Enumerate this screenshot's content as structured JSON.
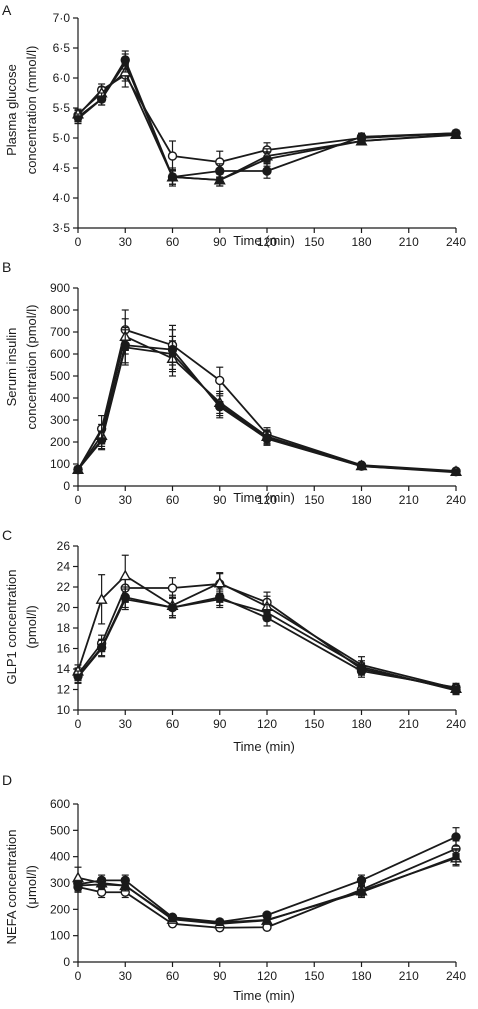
{
  "chart_data": [
    {
      "panel": "A",
      "type": "line",
      "xlabel": "Time (min)",
      "ylabel": [
        "Plasma glucose",
        "concentration (mmol/l)"
      ],
      "xlim": [
        0,
        240
      ],
      "ylim": [
        3.5,
        7.0
      ],
      "xticks": [
        0,
        30,
        60,
        90,
        120,
        150,
        180,
        210,
        240
      ],
      "xtick_labels": [
        "0",
        "30",
        "60",
        "90",
        "120",
        "150",
        "180",
        "210",
        "240"
      ],
      "yticks": [
        3.5,
        4.0,
        4.5,
        5.0,
        5.5,
        6.0,
        6.5,
        7.0
      ],
      "ytick_labels": [
        "3·5",
        "4·0",
        "4·5",
        "5·0",
        "5·5",
        "6·0",
        "6·5",
        "7·0"
      ],
      "x": [
        0,
        15,
        30,
        60,
        90,
        120,
        180,
        240
      ],
      "series": [
        {
          "marker": "open-circle",
          "values": [
            5.38,
            5.8,
            6.05,
            4.7,
            4.6,
            4.8,
            5.0,
            5.08
          ],
          "errors": [
            0.08,
            0.1,
            0.2,
            0.25,
            0.18,
            0.12,
            0.06,
            0.05
          ]
        },
        {
          "marker": "filled-circle",
          "values": [
            5.35,
            5.65,
            6.3,
            4.35,
            4.45,
            4.45,
            5.02,
            5.08
          ],
          "errors": [
            0.08,
            0.1,
            0.15,
            0.15,
            0.12,
            0.12,
            0.06,
            0.05
          ]
        },
        {
          "marker": "open-triangle",
          "values": [
            5.4,
            5.75,
            6.1,
            4.35,
            4.3,
            4.7,
            4.95,
            5.06
          ],
          "errors": [
            0.08,
            0.1,
            0.15,
            0.12,
            0.1,
            0.12,
            0.06,
            0.05
          ]
        },
        {
          "marker": "filled-square",
          "values": [
            5.32,
            5.65,
            6.25,
            4.35,
            4.3,
            4.65,
            4.95,
            5.05
          ],
          "errors": [
            0.08,
            0.1,
            0.15,
            0.12,
            0.1,
            0.12,
            0.06,
            0.05
          ]
        }
      ]
    },
    {
      "panel": "B",
      "type": "line",
      "xlabel": "Time (min)",
      "ylabel": [
        "Serum insulin",
        "concentration (pmol/l)"
      ],
      "xlim": [
        0,
        240
      ],
      "ylim": [
        0,
        900
      ],
      "xticks": [
        0,
        30,
        60,
        90,
        120,
        150,
        180,
        210,
        240
      ],
      "xtick_labels": [
        "0",
        "30",
        "60",
        "90",
        "120",
        "150",
        "180",
        "210",
        "240"
      ],
      "yticks": [
        0,
        100,
        200,
        300,
        400,
        500,
        600,
        700,
        800,
        900
      ],
      "ytick_labels": [
        "0",
        "100",
        "200",
        "300",
        "400",
        "500",
        "600",
        "700",
        "800",
        "900"
      ],
      "x": [
        0,
        15,
        30,
        60,
        90,
        120,
        180,
        240
      ],
      "series": [
        {
          "marker": "open-circle",
          "values": [
            75,
            260,
            710,
            640,
            480,
            235,
            95,
            68
          ],
          "errors": [
            15,
            60,
            90,
            90,
            60,
            30,
            10,
            8
          ]
        },
        {
          "marker": "filled-circle",
          "values": [
            75,
            210,
            640,
            620,
            360,
            215,
            90,
            65
          ],
          "errors": [
            15,
            40,
            80,
            90,
            50,
            30,
            10,
            8
          ]
        },
        {
          "marker": "open-triangle",
          "values": [
            75,
            230,
            680,
            580,
            380,
            225,
            92,
            66
          ],
          "errors": [
            15,
            50,
            80,
            80,
            50,
            30,
            10,
            8
          ]
        },
        {
          "marker": "filled-square",
          "values": [
            75,
            205,
            630,
            600,
            370,
            220,
            90,
            62
          ],
          "errors": [
            15,
            40,
            80,
            80,
            50,
            30,
            10,
            8
          ]
        }
      ]
    },
    {
      "panel": "C",
      "type": "line",
      "xlabel": "Time (min)",
      "ylabel": [
        "GLP1 concentration",
        "(pmol/l)"
      ],
      "xlim": [
        0,
        240
      ],
      "ylim": [
        10,
        26
      ],
      "xticks": [
        0,
        30,
        60,
        90,
        120,
        150,
        180,
        210,
        240
      ],
      "xtick_labels": [
        "0",
        "30",
        "60",
        "90",
        "120",
        "150",
        "180",
        "210",
        "240"
      ],
      "yticks": [
        10,
        12,
        14,
        16,
        18,
        20,
        22,
        24,
        26
      ],
      "ytick_labels": [
        "10",
        "12",
        "14",
        "16",
        "18",
        "20",
        "22",
        "24",
        "26"
      ],
      "x": [
        0,
        15,
        30,
        60,
        90,
        120,
        180,
        240
      ],
      "series": [
        {
          "marker": "open-circle",
          "values": [
            13.5,
            16.5,
            21.9,
            21.9,
            22.3,
            20.5,
            14.0,
            12.0
          ],
          "errors": [
            0.6,
            0.8,
            1.0,
            1.0,
            1.0,
            1.0,
            0.6,
            0.4
          ]
        },
        {
          "marker": "filled-circle",
          "values": [
            13.3,
            16.1,
            21.0,
            20.0,
            21.0,
            19.0,
            13.8,
            12.2
          ],
          "errors": [
            0.6,
            0.8,
            1.0,
            1.0,
            0.8,
            0.8,
            0.6,
            0.4
          ]
        },
        {
          "marker": "open-triangle",
          "values": [
            13.8,
            20.8,
            23.1,
            20.2,
            22.4,
            20.1,
            14.4,
            12.1
          ],
          "errors": [
            0.6,
            2.4,
            2.0,
            1.0,
            1.0,
            1.0,
            0.8,
            0.4
          ]
        },
        {
          "marker": "filled-square",
          "values": [
            13.2,
            16.0,
            20.8,
            20.0,
            20.8,
            19.5,
            14.2,
            11.9
          ],
          "errors": [
            0.6,
            0.8,
            1.0,
            1.0,
            0.8,
            0.8,
            0.6,
            0.4
          ]
        }
      ]
    },
    {
      "panel": "D",
      "type": "line",
      "xlabel": "Time (min)",
      "ylabel": [
        "NEFA concentration",
        "(μmol/l)"
      ],
      "xlim": [
        0,
        240
      ],
      "ylim": [
        0,
        600
      ],
      "xticks": [
        0,
        30,
        60,
        90,
        120,
        150,
        180,
        210,
        240
      ],
      "xtick_labels": [
        "0",
        "30",
        "60",
        "90",
        "120",
        "150",
        "180",
        "210",
        "240"
      ],
      "yticks": [
        0,
        100,
        200,
        300,
        400,
        500,
        600
      ],
      "ytick_labels": [
        "0",
        "100",
        "200",
        "300",
        "400",
        "500",
        "600"
      ],
      "x": [
        0,
        15,
        30,
        60,
        90,
        120,
        180,
        240
      ],
      "series": [
        {
          "marker": "open-circle",
          "values": [
            285,
            265,
            265,
            145,
            130,
            132,
            275,
            430
          ],
          "errors": [
            20,
            20,
            20,
            10,
            10,
            10,
            20,
            30
          ]
        },
        {
          "marker": "filled-circle",
          "values": [
            295,
            310,
            310,
            170,
            152,
            178,
            310,
            475
          ],
          "errors": [
            20,
            20,
            20,
            10,
            10,
            10,
            20,
            35
          ]
        },
        {
          "marker": "open-triangle",
          "values": [
            320,
            300,
            290,
            162,
            145,
            158,
            270,
            395
          ],
          "errors": [
            40,
            20,
            20,
            10,
            10,
            10,
            20,
            30
          ]
        },
        {
          "marker": "filled-square",
          "values": [
            290,
            295,
            290,
            165,
            150,
            160,
            265,
            400
          ],
          "errors": [
            20,
            20,
            20,
            10,
            10,
            10,
            20,
            30
          ]
        }
      ]
    }
  ]
}
